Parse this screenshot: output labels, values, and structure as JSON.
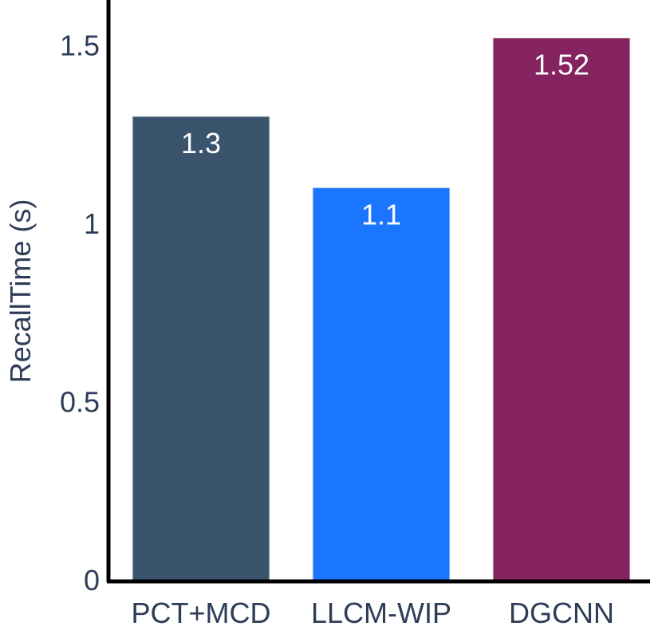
{
  "chart_data": {
    "type": "bar",
    "categories": [
      "PCT+MCD",
      "LLCM-WIP",
      "DGCNN"
    ],
    "values": [
      1.3,
      1.1,
      1.52
    ],
    "value_labels": [
      "1.3",
      "1.1",
      "1.52"
    ],
    "bar_colors": [
      "#3a546d",
      "#1b76ff",
      "#84235f"
    ],
    "text_color": "#2e3d57",
    "axis_color": "#000000",
    "title": "",
    "xlabel": "",
    "ylabel": "RecallTime (s)",
    "ylim": [
      0,
      1.6
    ],
    "yticks": [
      0,
      0.5,
      1,
      1.5
    ],
    "ytick_labels": [
      "0",
      "0.5",
      "1",
      "1.5"
    ],
    "grid": false,
    "legend": "none"
  }
}
